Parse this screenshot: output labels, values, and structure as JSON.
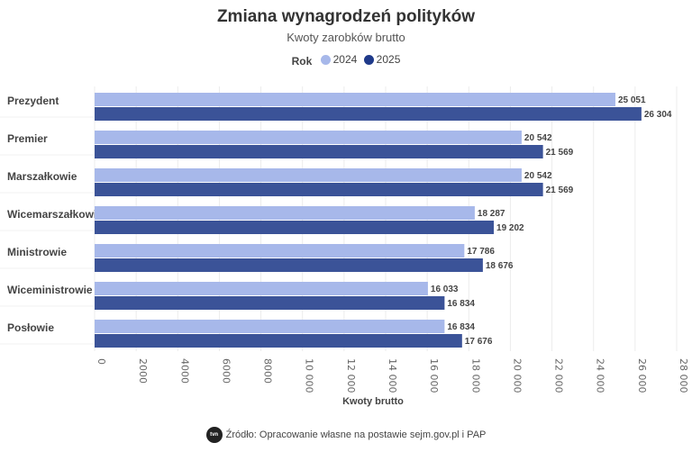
{
  "chart_data": {
    "type": "bar",
    "orientation": "horizontal",
    "title": "Zmiana wynagrodzeń polityków",
    "subtitle": "Kwoty zarobków brutto",
    "legend_title": "Rok",
    "legend_placement": "top",
    "categories": [
      "Prezydent",
      "Premier",
      "Marszałkowie",
      "Wicemarszałkowie",
      "Ministrowie",
      "Wiceministrowie",
      "Posłowie"
    ],
    "series": [
      {
        "name": "2024",
        "color": "#a7b8ea",
        "values": [
          25051,
          20542,
          20542,
          18287,
          17786,
          16033,
          16834
        ],
        "labels": [
          "25 051",
          "20 542",
          "20 542",
          "18 287",
          "17 786",
          "16 033",
          "16 834"
        ]
      },
      {
        "name": "2025",
        "color": "#3b5398",
        "legend_color": "#1f3a8a",
        "values": [
          26304,
          21569,
          21569,
          19202,
          18676,
          16834,
          17676
        ],
        "labels": [
          "26 304",
          "21 569",
          "21 569",
          "19 202",
          "18 676",
          "16 834",
          "17 676"
        ]
      }
    ],
    "xlabel": "Kwoty brutto",
    "xlim": [
      0,
      28000
    ],
    "xticks": [
      0,
      2000,
      4000,
      6000,
      8000,
      10000,
      12000,
      14000,
      16000,
      18000,
      20000,
      22000,
      24000,
      26000,
      28000
    ],
    "xtick_labels": [
      "0",
      "2000",
      "4000",
      "6000",
      "8000",
      "10 000",
      "12 000",
      "14 000",
      "16 000",
      "18 000",
      "20 000",
      "22 000",
      "24 000",
      "26 000",
      "28 000"
    ],
    "grid": true
  },
  "source": {
    "logo": "tvn24",
    "text": "Źródło: Opracowanie własne na postawie sejm.gov.pl i PAP"
  }
}
